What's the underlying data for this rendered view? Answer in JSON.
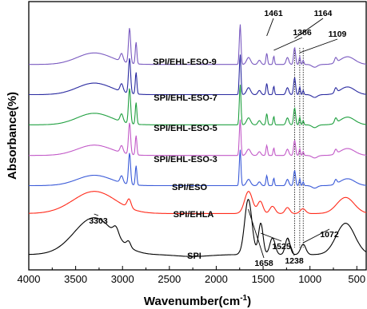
{
  "chart_data": {
    "type": "line",
    "xlabel": "Wavenumber(cm",
    "xlabel_sup": "-1",
    "xlabel_close": ")",
    "ylabel": "Absorbance(%)",
    "xlim": [
      4000,
      400
    ],
    "x_reversed": true,
    "x_ticks": [
      "4000",
      "3500",
      "3000",
      "2500",
      "2000",
      "1500",
      "1000",
      "500"
    ],
    "x_tick_values": [
      4000,
      3500,
      3000,
      2500,
      2000,
      1500,
      1000,
      500
    ],
    "ylim": [
      0,
      8
    ],
    "y_ticks_labeled": false,
    "grid": false,
    "legend": "inline labels",
    "series": [
      {
        "name": "SPI",
        "color": "#000000",
        "offset": 0.4,
        "peak": 2.0
      },
      {
        "name": "SPI/EHLA",
        "color": "#ff2a1a",
        "offset": 1.5,
        "peak": 1.0
      },
      {
        "name": "SPI/ESO",
        "color": "#3a5ad8",
        "offset": 2.4,
        "peak": 1.7
      },
      {
        "name": "SPI/EHL-ESO-3",
        "color": "#c25ac8",
        "offset": 3.3,
        "peak": 1.7
      },
      {
        "name": "SPI/EHL-ESO-5",
        "color": "#20a040",
        "offset": 4.2,
        "peak": 1.9
      },
      {
        "name": "SPI/EHL-ESO-7",
        "color": "#2a2aa0",
        "offset": 5.1,
        "peak": 1.9
      },
      {
        "name": "SPI/EHL-ESO-9",
        "color": "#7a5ac0",
        "offset": 6.0,
        "peak": 1.9
      }
    ],
    "annotations": [
      {
        "text": "3303",
        "x": 3303
      },
      {
        "text": "1658",
        "x": 1658
      },
      {
        "text": "1525",
        "x": 1525
      },
      {
        "text": "1238",
        "x": 1238
      },
      {
        "text": "1072",
        "x": 1072
      },
      {
        "text": "1461",
        "x": 1461
      },
      {
        "text": "1386",
        "x": 1386
      },
      {
        "text": "1164",
        "x": 1164
      },
      {
        "text": "1109",
        "x": 1109
      }
    ],
    "dotted_reference_lines": [
      1164,
      1109,
      1072
    ]
  }
}
